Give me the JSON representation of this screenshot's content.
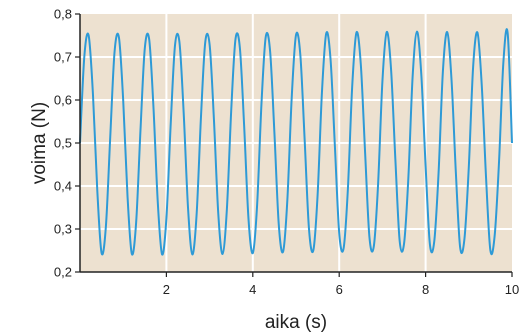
{
  "chart_data": {
    "type": "line",
    "title": "",
    "xlabel": "aika (s)",
    "ylabel": "voima (N)",
    "xlim": [
      0,
      10
    ],
    "ylim": [
      0.2,
      0.8
    ],
    "x_ticks": [
      {
        "value": 2,
        "label": "2"
      },
      {
        "value": 4,
        "label": "4"
      },
      {
        "value": 6,
        "label": "6"
      },
      {
        "value": 8,
        "label": "8"
      },
      {
        "value": 10,
        "label": "10"
      }
    ],
    "y_ticks": [
      {
        "value": 0.2,
        "label": "0,2"
      },
      {
        "value": 0.3,
        "label": "0,3"
      },
      {
        "value": 0.4,
        "label": "0,4"
      },
      {
        "value": 0.5,
        "label": "0,5"
      },
      {
        "value": 0.6,
        "label": "0,6"
      },
      {
        "value": 0.7,
        "label": "0,7"
      },
      {
        "value": 0.8,
        "label": "0,8"
      }
    ],
    "grid": true,
    "series": [
      {
        "x": [
          0.0,
          0.1,
          0.2,
          0.3,
          0.4,
          0.5,
          0.6,
          0.7,
          0.8,
          0.9,
          1.0,
          1.1,
          1.2,
          1.3,
          1.4,
          1.5,
          1.6,
          1.7,
          1.8,
          1.9,
          2.0,
          2.1,
          2.2,
          2.3,
          2.4,
          2.5,
          2.6,
          2.7,
          2.8,
          2.9,
          3.0,
          3.1,
          3.2,
          3.3,
          3.4,
          3.5,
          3.6,
          3.7,
          3.8,
          3.9,
          4.0,
          4.1,
          4.2,
          4.3,
          4.4,
          4.5,
          4.6,
          4.7,
          4.8,
          4.9,
          5.0,
          5.1,
          5.2,
          5.3,
          5.4,
          5.5,
          5.6,
          5.7,
          5.8,
          5.9,
          6.0,
          6.1,
          6.2,
          6.3,
          6.4,
          6.5,
          6.6,
          6.7,
          6.8,
          6.9,
          7.0,
          7.1,
          7.2,
          7.3,
          7.4,
          7.5,
          7.6,
          7.7,
          7.8,
          7.9,
          8.0,
          8.1,
          8.2,
          8.3,
          8.4,
          8.5,
          8.6,
          8.7,
          8.8,
          8.9,
          9.0,
          9.1,
          9.2,
          9.3,
          9.4,
          9.5,
          9.6,
          9.7,
          9.8,
          9.9,
          10.0
        ],
        "y": [
          0.5,
          0.701,
          0.75,
          0.613,
          0.39,
          0.244,
          0.307,
          0.514,
          0.712,
          0.746,
          0.599,
          0.376,
          0.242,
          0.316,
          0.53,
          0.72,
          0.742,
          0.584,
          0.363,
          0.241,
          0.325,
          0.545,
          0.728,
          0.736,
          0.57,
          0.35,
          0.241,
          0.335,
          0.56,
          0.735,
          0.729,
          0.555,
          0.337,
          0.242,
          0.346,
          0.575,
          0.742,
          0.722,
          0.539,
          0.324,
          0.244,
          0.356,
          0.59,
          0.747,
          0.714,
          0.524,
          0.312,
          0.247,
          0.368,
          0.604,
          0.751,
          0.705,
          0.508,
          0.301,
          0.25,
          0.379,
          0.617,
          0.755,
          0.694,
          0.493,
          0.291,
          0.254,
          0.391,
          0.63,
          0.757,
          0.683,
          0.477,
          0.281,
          0.259,
          0.404,
          0.643,
          0.758,
          0.672,
          0.462,
          0.272,
          0.265,
          0.417,
          0.655,
          0.759,
          0.66,
          0.447,
          0.264,
          0.271,
          0.43,
          0.666,
          0.758,
          0.647,
          0.432,
          0.257,
          0.278,
          0.444,
          0.677,
          0.757,
          0.634,
          0.418,
          0.25,
          0.286,
          0.457,
          0.687,
          0.755,
          0.5
        ],
        "color": "#2e9ad6"
      }
    ],
    "colors": {
      "plot_background": "#ede1d0",
      "grid": "#ffffff",
      "axis": "#222222"
    }
  }
}
